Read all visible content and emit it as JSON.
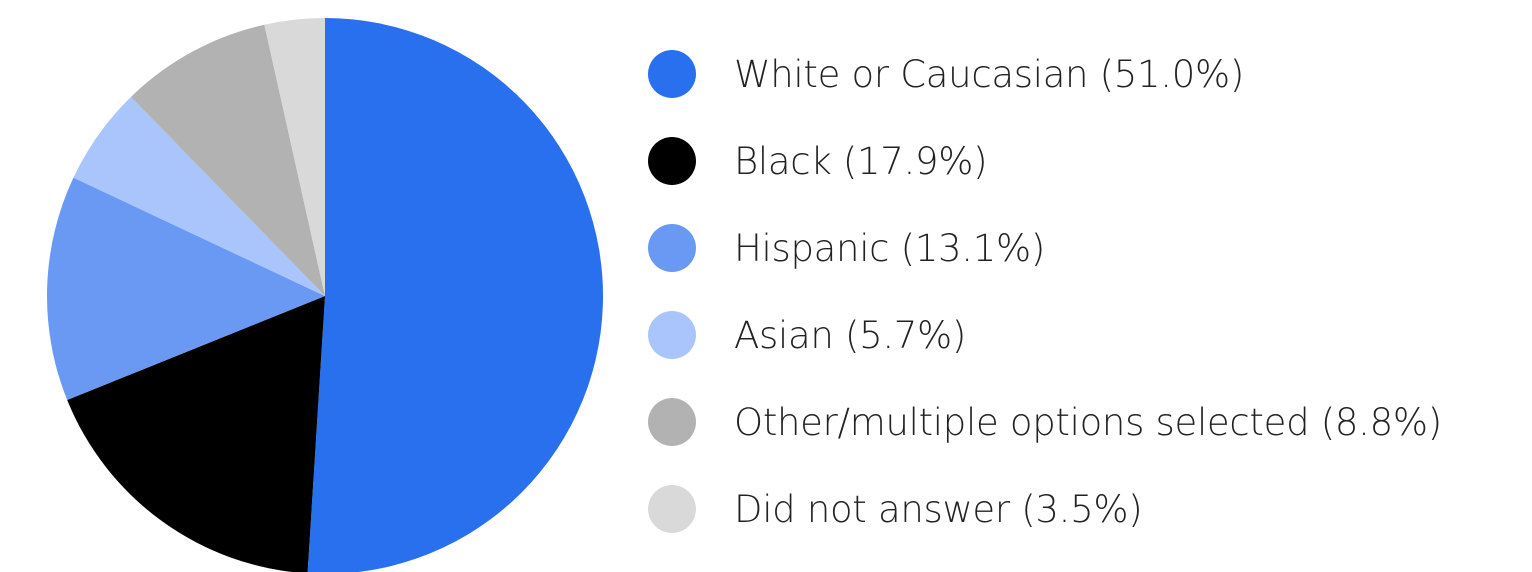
{
  "chart_data": {
    "type": "pie",
    "title": "",
    "start_angle_deg": 0,
    "direction": "clockwise",
    "slices": [
      {
        "label": "White or Caucasian (51.0%)",
        "value": 51.0,
        "color": "#2970ef"
      },
      {
        "label": "Black (17.9%)",
        "value": 17.9,
        "color": "#000000"
      },
      {
        "label": "Hispanic (13.1%)",
        "value": 13.1,
        "color": "#6999f3"
      },
      {
        "label": "Asian (5.7%)",
        "value": 5.7,
        "color": "#a9c5fb"
      },
      {
        "label": "Other/multiple options selected (8.8%)",
        "value": 8.8,
        "color": "#b2b2b2"
      },
      {
        "label": "Did not answer (3.5%)",
        "value": 3.5,
        "color": "#d9d9d9"
      }
    ],
    "legend": {
      "placement": "right"
    }
  }
}
